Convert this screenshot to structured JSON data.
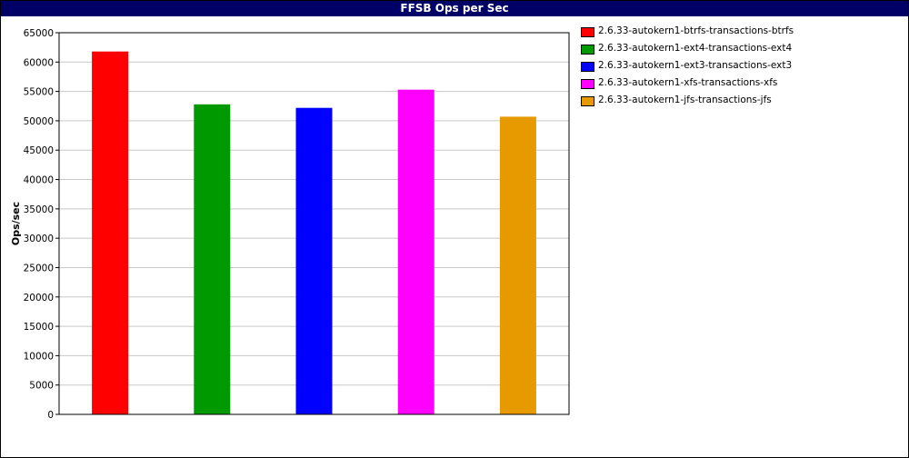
{
  "chart_data": {
    "type": "bar",
    "title": "FFSB Ops per Sec",
    "ylabel": "Ops/sec",
    "xlabel": "",
    "ylim": [
      0,
      65000
    ],
    "yticks": [
      0,
      5000,
      10000,
      15000,
      20000,
      25000,
      30000,
      35000,
      40000,
      45000,
      50000,
      55000,
      60000,
      65000
    ],
    "grid": true,
    "legend_position": "right",
    "series": [
      {
        "name": "2.6.33-autokern1-btrfs-transactions-btrfs",
        "value": 61800,
        "color": "#ff0000"
      },
      {
        "name": "2.6.33-autokern1-ext4-transactions-ext4",
        "value": 52800,
        "color": "#009900"
      },
      {
        "name": "2.6.33-autokern1-ext3-transactions-ext3",
        "value": 52200,
        "color": "#0000ff"
      },
      {
        "name": "2.6.33-autokern1-xfs-transactions-xfs",
        "value": 55300,
        "color": "#ff00ff"
      },
      {
        "name": "2.6.33-autokern1-jfs-transactions-jfs",
        "value": 50700,
        "color": "#e69a00"
      }
    ]
  }
}
